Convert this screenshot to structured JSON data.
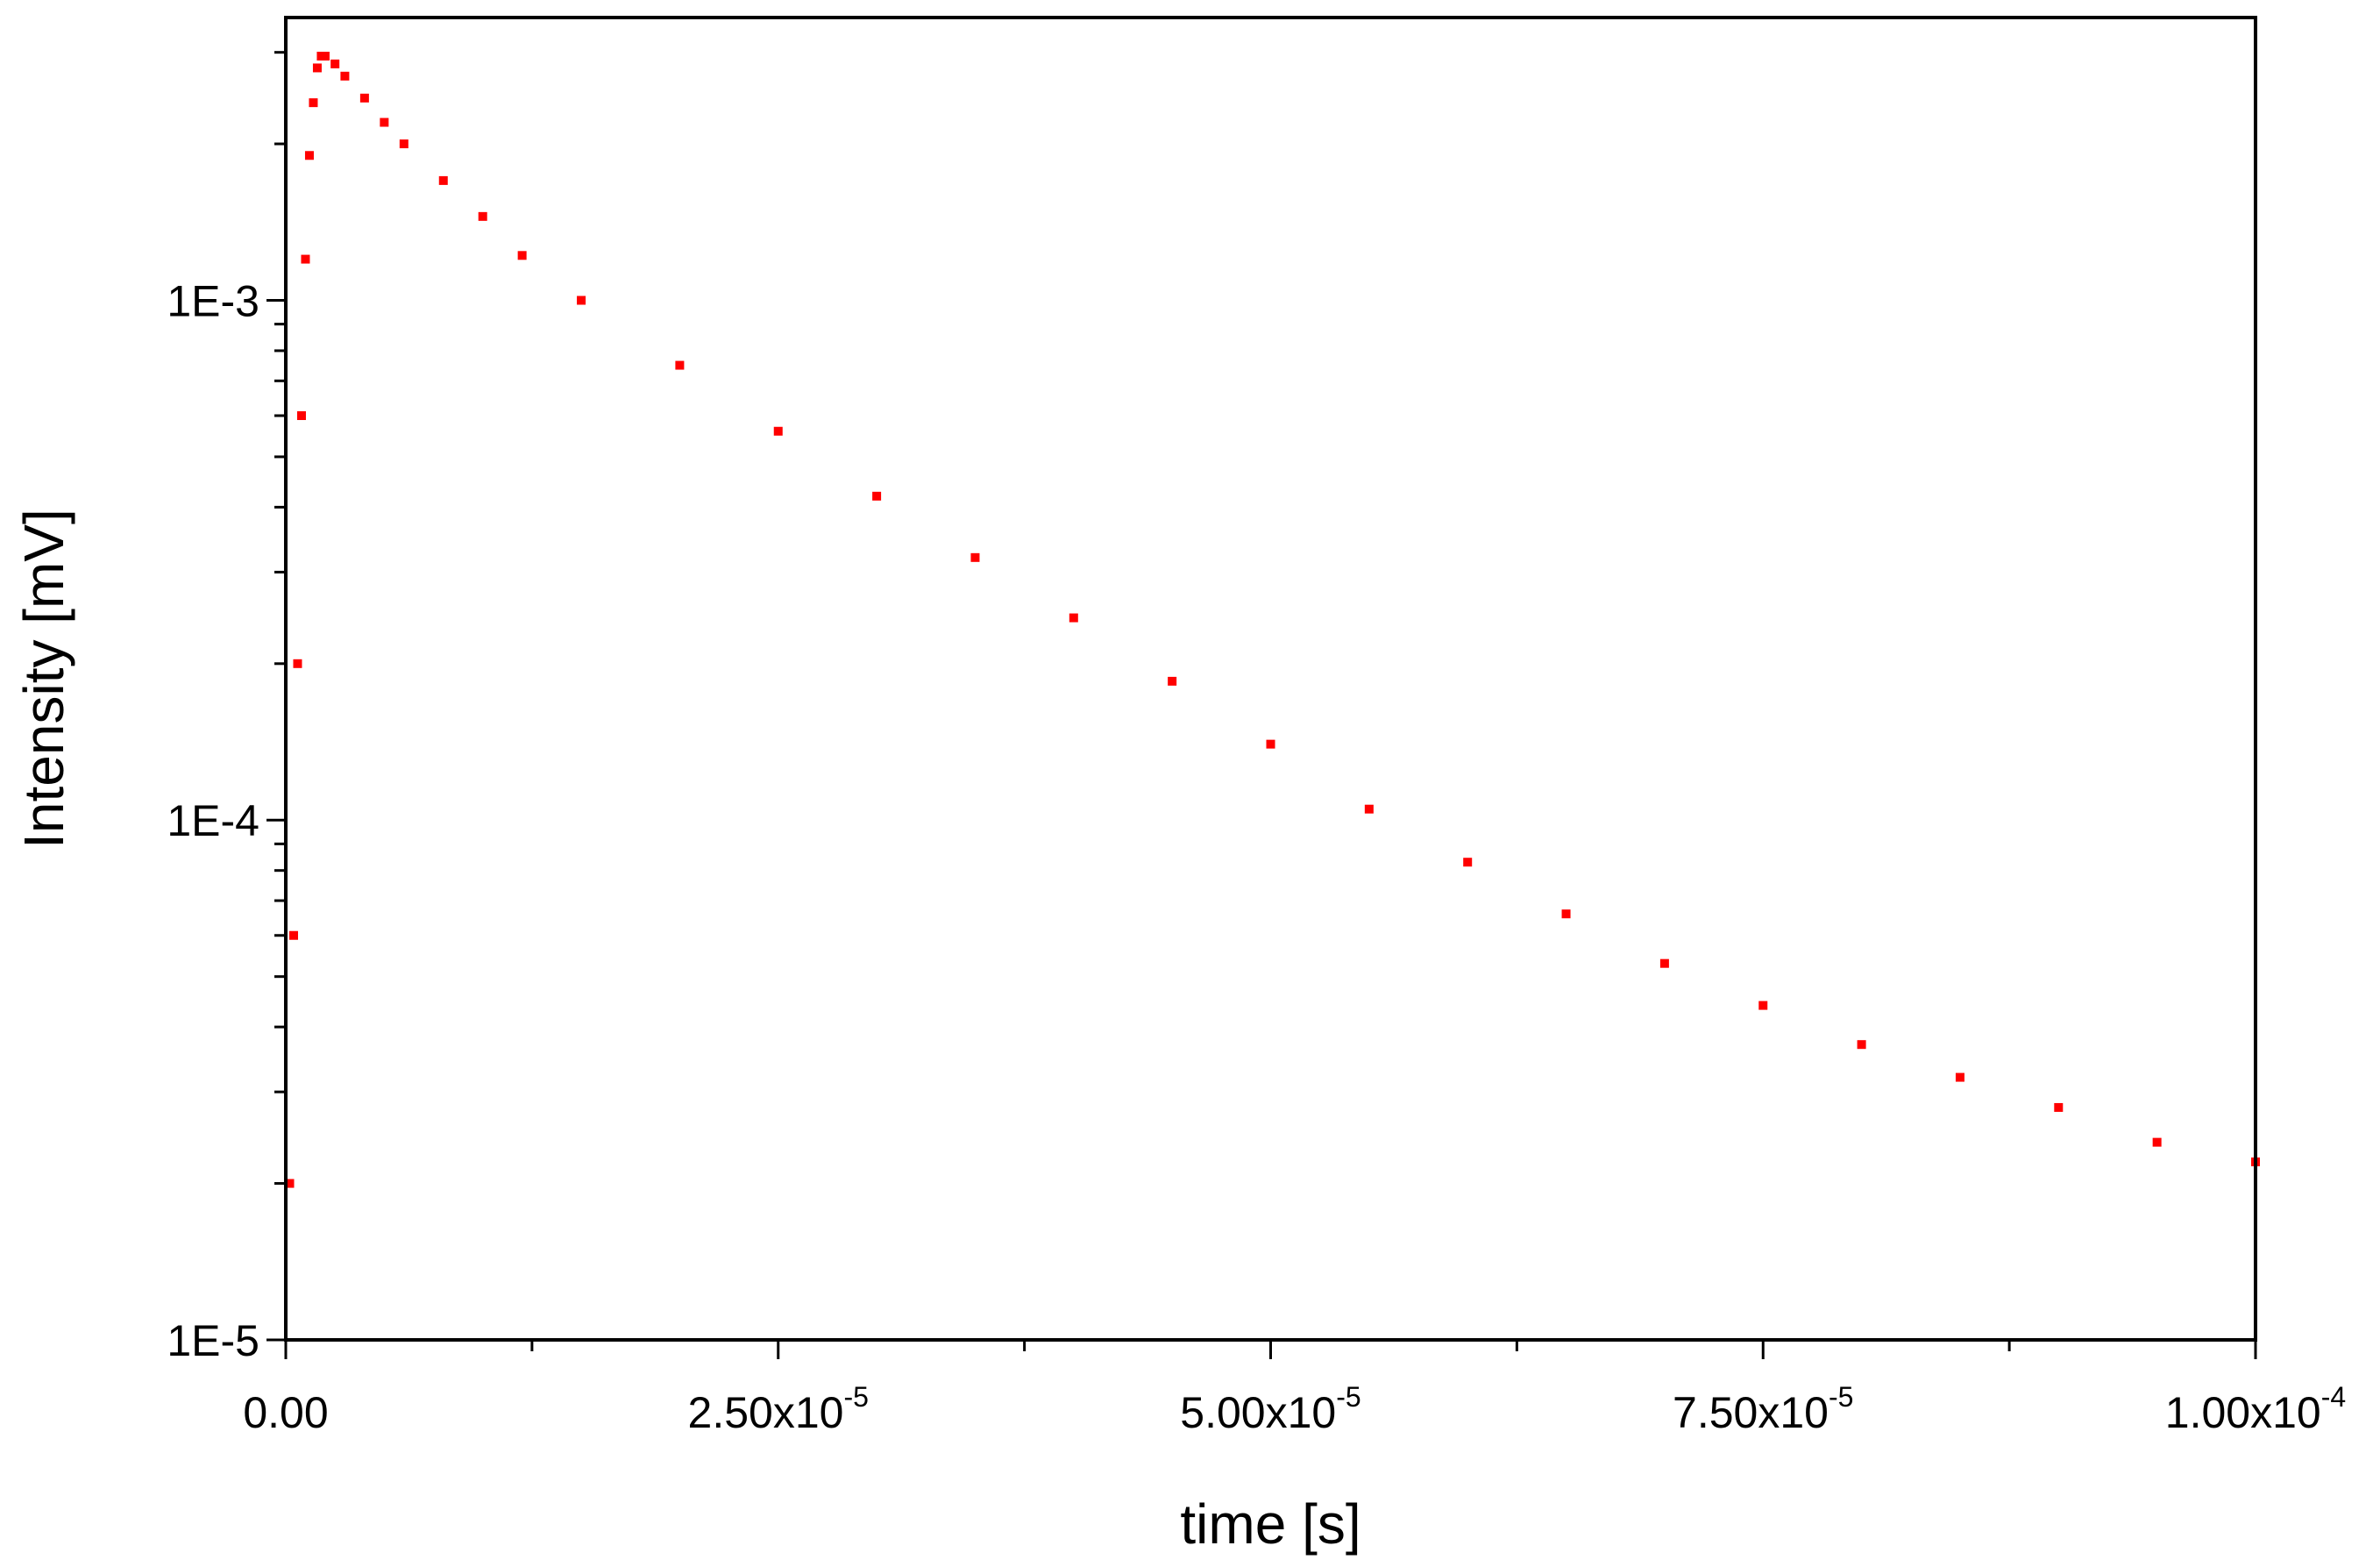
{
  "chart_data": {
    "type": "scatter",
    "title": "",
    "xlabel": "time [s]",
    "ylabel": "Intensity [mV]",
    "xlim": [
      0,
      0.0001
    ],
    "ylim": [
      1e-05,
      0.0035
    ],
    "y_scale": "log",
    "grid": false,
    "legend": "none",
    "marker_color": "#ff0000",
    "x_ticks": [
      {
        "value": 0,
        "label": "0.00",
        "exp": ""
      },
      {
        "value": 2.5e-05,
        "label": "2.50x10",
        "exp": "-5"
      },
      {
        "value": 5e-05,
        "label": "5.00x10",
        "exp": "-5"
      },
      {
        "value": 7.5e-05,
        "label": "7.50x10",
        "exp": "-5"
      },
      {
        "value": 0.0001,
        "label": "1.00x10",
        "exp": "-4"
      }
    ],
    "y_ticks": [
      {
        "value": 1e-05,
        "label": "1E-5"
      },
      {
        "value": 0.0001,
        "label": "1E-4"
      },
      {
        "value": 0.001,
        "label": "1E-3"
      }
    ],
    "series": [
      {
        "x": [
          2e-07,
          4e-07,
          6e-07,
          8e-07,
          1e-06,
          1.2e-06,
          1.4e-06,
          1.6e-06,
          1.8e-06,
          2e-06,
          2.5e-06,
          3e-06,
          4e-06,
          5e-06,
          6e-06,
          8e-06,
          1e-05,
          1.2e-05,
          1.5e-05,
          2e-05,
          2.5e-05,
          3e-05,
          3.5e-05,
          4e-05,
          4.5e-05,
          5e-05,
          5.5e-05,
          6e-05,
          6.5e-05,
          7e-05,
          7.5e-05,
          8e-05,
          8.5e-05,
          9e-05,
          9.5e-05,
          0.0001
        ],
        "y": [
          2e-05,
          6e-05,
          0.0002,
          0.0006,
          0.0012,
          0.0019,
          0.0024,
          0.0028,
          0.00295,
          0.00295,
          0.00285,
          0.0027,
          0.00245,
          0.0022,
          0.002,
          0.0017,
          0.00145,
          0.00122,
          0.001,
          0.00075,
          0.00056,
          0.00042,
          0.00032,
          0.000245,
          0.000185,
          0.00014,
          0.000105,
          8.3e-05,
          6.6e-05,
          5.3e-05,
          4.4e-05,
          3.7e-05,
          3.2e-05,
          2.8e-05,
          2.4e-05,
          2.2e-05
        ]
      }
    ]
  }
}
